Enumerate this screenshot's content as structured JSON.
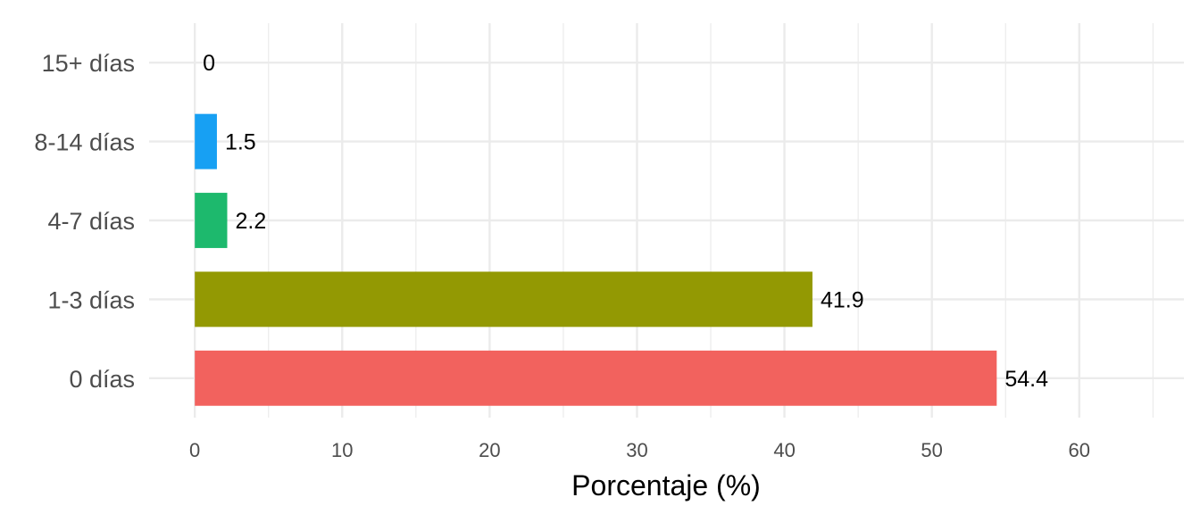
{
  "chart_data": {
    "type": "bar",
    "orientation": "horizontal",
    "categories": [
      "0 días",
      "1-3 días",
      "4-7 días",
      "8-14 días",
      "15+ días"
    ],
    "values": [
      54.4,
      41.9,
      2.2,
      1.5,
      0
    ],
    "value_labels": [
      "54.4",
      "41.9",
      "2.2",
      "1.5",
      "0"
    ],
    "colors": [
      "#F2625E",
      "#939903",
      "#1DB96D",
      "#17A0F3",
      "#E46BE6"
    ],
    "xlabel": "Porcentaje (%)",
    "ylabel": "",
    "xlim": [
      -3.1,
      67.1
    ],
    "x_ticks": [
      0,
      10,
      20,
      30,
      40,
      50,
      60
    ],
    "x_tick_labels": [
      "0",
      "10",
      "20",
      "30",
      "40",
      "50",
      "60"
    ],
    "grid": true,
    "legend": "none"
  }
}
